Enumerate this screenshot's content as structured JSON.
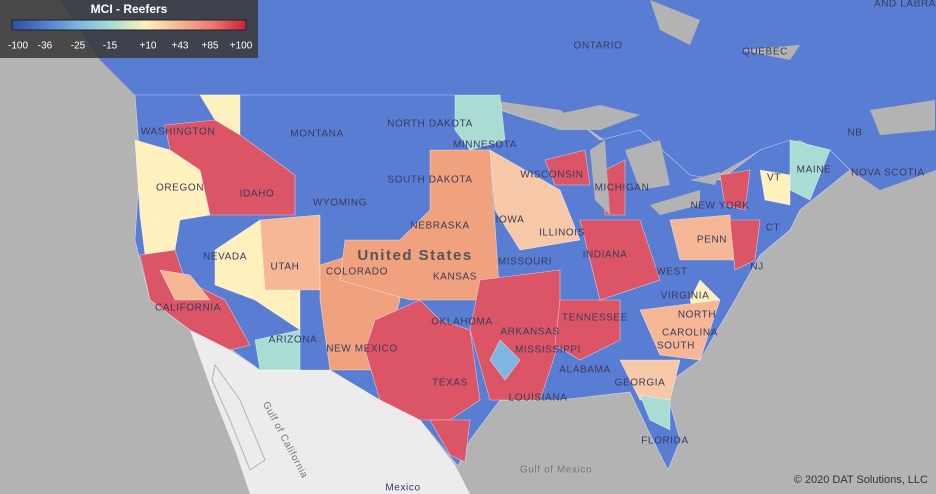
{
  "legend": {
    "title": "MCI - Reefers",
    "ticks": [
      "-100",
      "-36",
      "-25",
      "-15",
      "+10",
      "+43",
      "+85",
      "+100"
    ],
    "colors": [
      "#2f4fa6",
      "#4f7fd0",
      "#7db6e0",
      "#a9ddd4",
      "#fff1bd",
      "#f5b795",
      "#ea7a72",
      "#c81f3c"
    ]
  },
  "map": {
    "labels": [
      "ONTARIO",
      "QUEBEC",
      "AND LABRA",
      "NB",
      "NOVA SCOTIA",
      "WASHINGTON",
      "OREGON",
      "CALIFORNIA",
      "NEVADA",
      "IDAHO",
      "MONTANA",
      "WYOMING",
      "UTAH",
      "COLORADO",
      "ARIZONA",
      "NEW MEXICO",
      "NORTH DAKOTA",
      "SOUTH DAKOTA",
      "NEBRASKA",
      "KANSAS",
      "OKLAHOMA",
      "TEXAS",
      "MINNESOTA",
      "IOWA",
      "MISSOURI",
      "ARKANSAS",
      "LOUISIANA",
      "MISSISSIPPI",
      "WISCONSIN",
      "ILLINOIS",
      "MICHIGAN",
      "INDIANA",
      "TENNESSEE",
      "ALABAMA",
      "GEORGIA",
      "FLORIDA",
      "SOUTH",
      "NORTH",
      "CAROLINA",
      "VIRGINIA",
      "WEST",
      "PENN",
      "NEW YORK",
      "VT",
      "MAINE",
      "NJ",
      "CT"
    ],
    "country": "United States",
    "mexico": "Mexico",
    "gulf_mexico": "Gulf of Mexico",
    "gulf_california": "Gulf of California"
  },
  "copyright": "© 2020 DAT Solutions, LLC"
}
